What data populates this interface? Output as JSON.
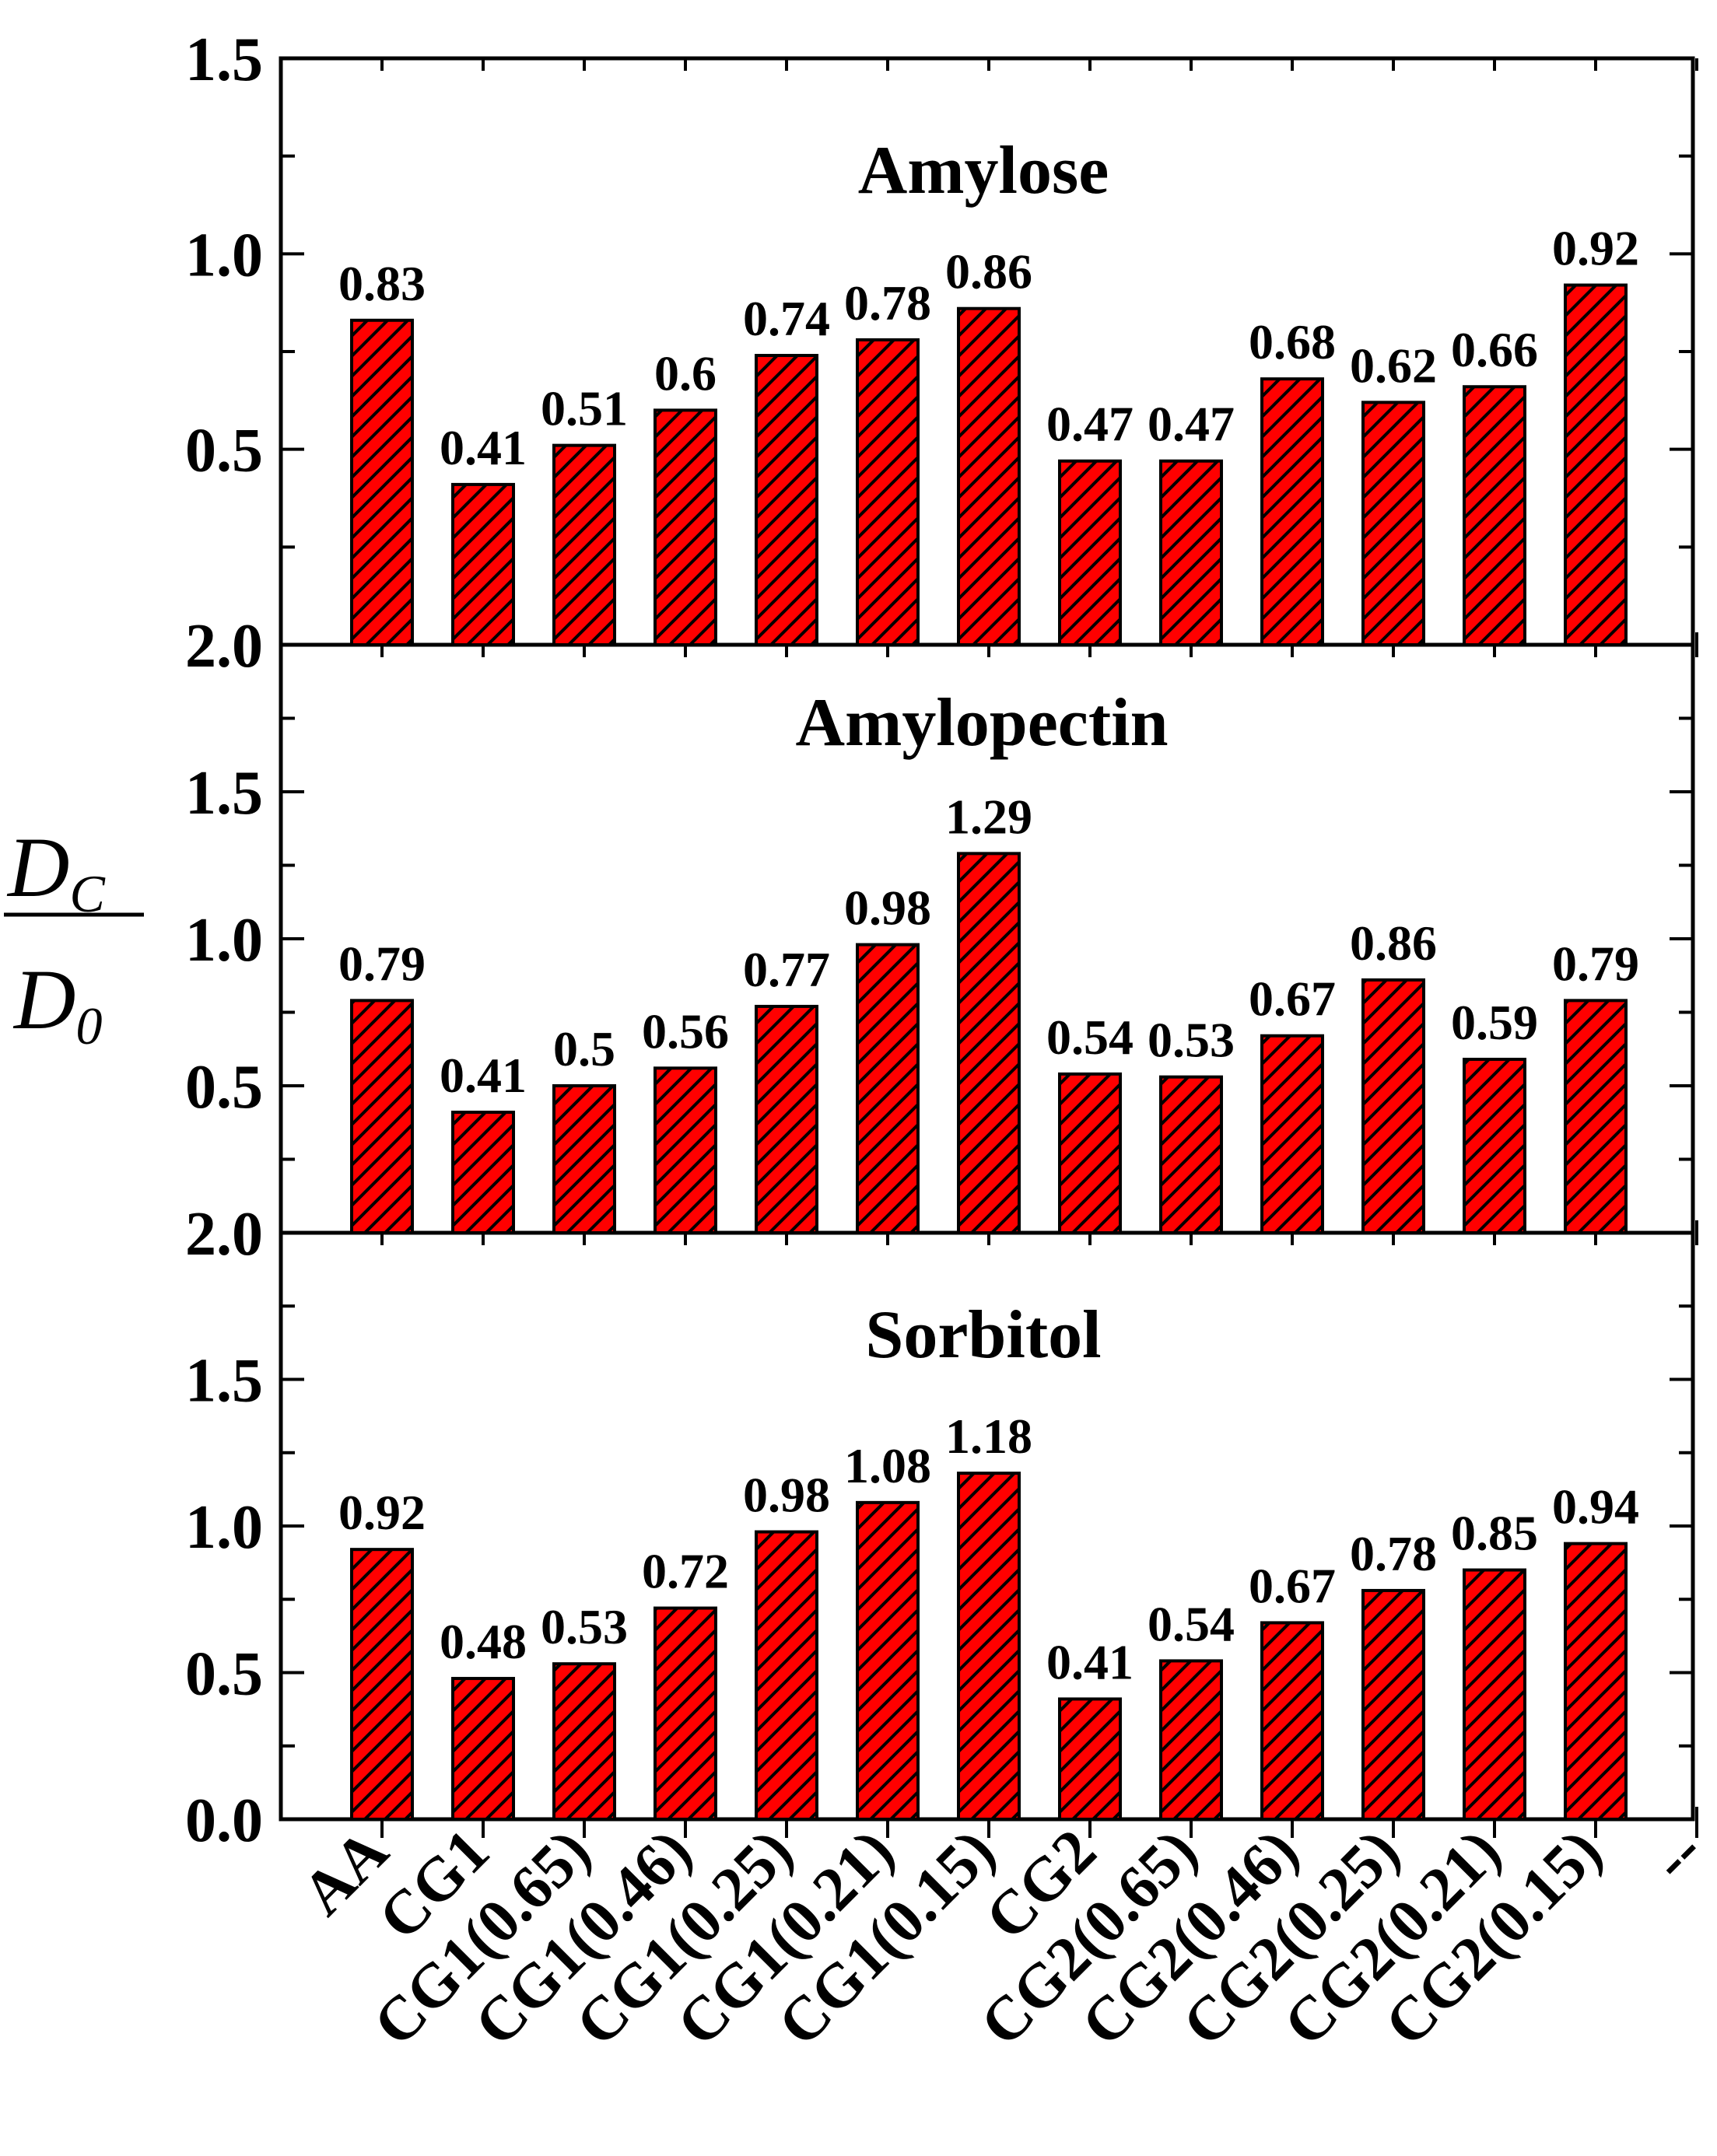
{
  "colors": {
    "bar_fill": "#ff0000",
    "hatch": "#000000",
    "axis": "#000000",
    "background": "#ffffff"
  },
  "ylabel": {
    "num_base": "D",
    "num_sub": "C",
    "den_base": "D",
    "den_sub": "0"
  },
  "categories": [
    "AA",
    "CG1",
    "CG1(0.65)",
    "CG1(0.46)",
    "CG1(0.25)",
    "CG1(0.21)",
    "CG1(0.15)",
    "CG2",
    "CG2(0.65)",
    "CG2(0.46)",
    "CG2(0.25)",
    "CG2(0.21)",
    "CG2(0.15)",
    "--"
  ],
  "chart_data": [
    {
      "type": "bar",
      "title": "Amylose",
      "categories": [
        "AA",
        "CG1",
        "CG1(0.65)",
        "CG1(0.46)",
        "CG1(0.25)",
        "CG1(0.21)",
        "CG1(0.15)",
        "CG2",
        "CG2(0.65)",
        "CG2(0.46)",
        "CG2(0.25)",
        "CG2(0.21)",
        "CG2(0.15)"
      ],
      "values": [
        0.83,
        0.41,
        0.51,
        0.6,
        0.74,
        0.78,
        0.86,
        0.47,
        0.47,
        0.68,
        0.62,
        0.66,
        0.92
      ],
      "labels": [
        "0.83",
        "0.41",
        "0.51",
        "0.6",
        "0.74",
        "0.78",
        "0.86",
        "0.47",
        "0.47",
        "0.68",
        "0.62",
        "0.66",
        "0.92"
      ],
      "ylim": [
        0.0,
        1.5
      ],
      "yticks": [
        0.5,
        1.0,
        1.5
      ],
      "ytick_labels": [
        "0.5",
        "1.0",
        "1.5"
      ],
      "bottom_label": "2.0"
    },
    {
      "type": "bar",
      "title": "Amylopectin",
      "categories": [
        "AA",
        "CG1",
        "CG1(0.65)",
        "CG1(0.46)",
        "CG1(0.25)",
        "CG1(0.21)",
        "CG1(0.15)",
        "CG2",
        "CG2(0.65)",
        "CG2(0.46)",
        "CG2(0.25)",
        "CG2(0.21)",
        "CG2(0.15)"
      ],
      "values": [
        0.79,
        0.41,
        0.5,
        0.56,
        0.77,
        0.98,
        1.29,
        0.54,
        0.53,
        0.67,
        0.86,
        0.59,
        0.79
      ],
      "labels": [
        "0.79",
        "0.41",
        "0.5",
        "0.56",
        "0.77",
        "0.98",
        "1.29",
        "0.54",
        "0.53",
        "0.67",
        "0.86",
        "0.59",
        "0.79"
      ],
      "ylim": [
        0.0,
        2.0
      ],
      "yticks": [
        0.5,
        1.0,
        1.5
      ],
      "ytick_labels": [
        "0.5",
        "1.0",
        "1.5"
      ],
      "bottom_label": "2.0"
    },
    {
      "type": "bar",
      "title": "Sorbitol",
      "categories": [
        "AA",
        "CG1",
        "CG1(0.65)",
        "CG1(0.46)",
        "CG1(0.25)",
        "CG1(0.21)",
        "CG1(0.15)",
        "CG2",
        "CG2(0.65)",
        "CG2(0.46)",
        "CG2(0.25)",
        "CG2(0.21)",
        "CG2(0.15)"
      ],
      "values": [
        0.92,
        0.48,
        0.53,
        0.72,
        0.98,
        1.08,
        1.18,
        0.41,
        0.54,
        0.67,
        0.78,
        0.85,
        0.94
      ],
      "labels": [
        "0.92",
        "0.48",
        "0.53",
        "0.72",
        "0.98",
        "1.08",
        "1.18",
        "0.41",
        "0.54",
        "0.67",
        "0.78",
        "0.85",
        "0.94"
      ],
      "ylim": [
        0.0,
        2.0
      ],
      "yticks": [
        0.0,
        0.5,
        1.0,
        1.5
      ],
      "ytick_labels": [
        "0.0",
        "0.5",
        "1.0",
        "1.5"
      ]
    }
  ]
}
